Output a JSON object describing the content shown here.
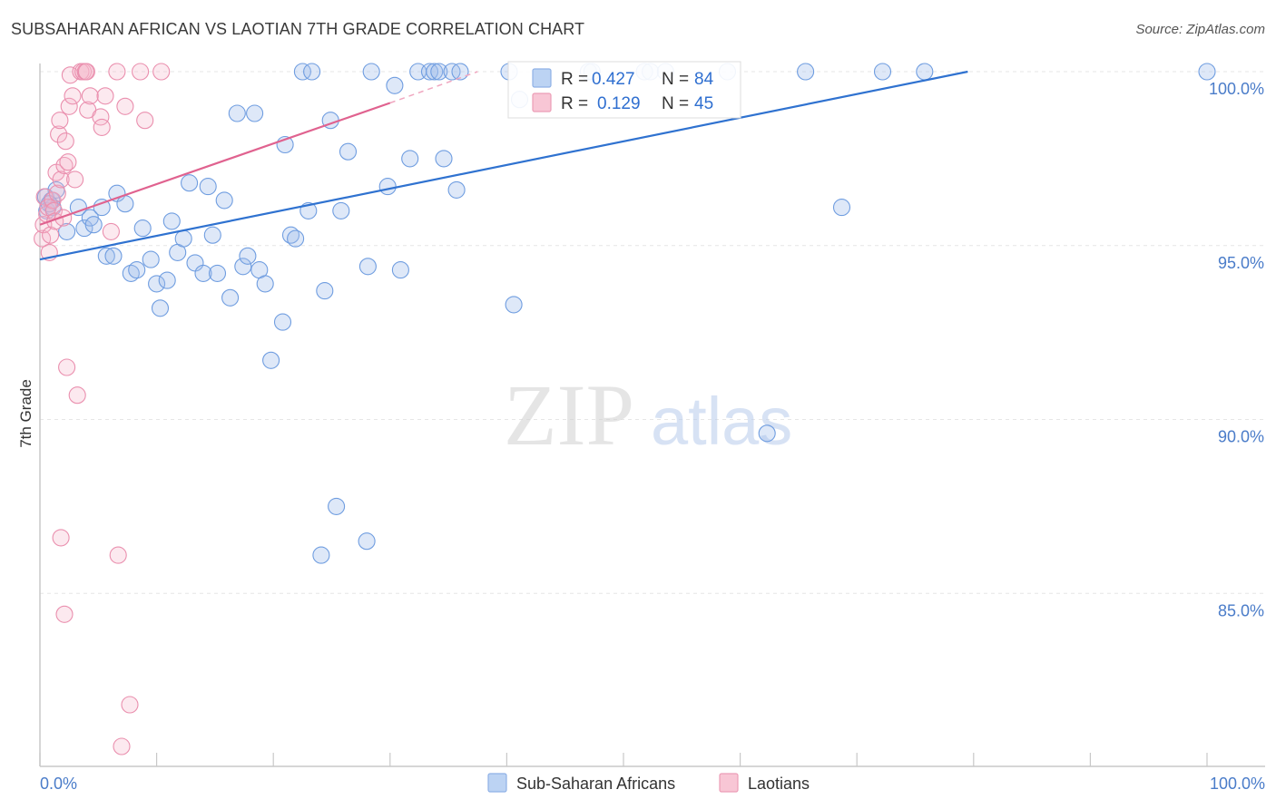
{
  "header": {
    "title": "SUBSAHARAN AFRICAN VS LAOTIAN 7TH GRADE CORRELATION CHART",
    "source": "Source: ZipAtlas.com"
  },
  "watermark": {
    "zip": "ZIP",
    "atlas": "atlas"
  },
  "legend": {
    "rows": [
      {
        "r_label": "R = ",
        "r_value": "0.427",
        "n_label": "N = ",
        "n_value": "84",
        "color": "#a9c6f0"
      },
      {
        "r_label": "R = ",
        "r_value": "0.129",
        "n_label": "N = ",
        "n_value": "45",
        "color": "#f5b6c9"
      }
    ]
  },
  "bottom_legend": {
    "items": [
      {
        "label": "Sub-Saharan Africans",
        "color": "#a9c6f0"
      },
      {
        "label": "Laotians",
        "color": "#f5b6c9"
      }
    ]
  },
  "chart_data": {
    "type": "scatter",
    "title": "SUBSAHARAN AFRICAN VS LAOTIAN 7TH GRADE CORRELATION CHART",
    "xlabel": "",
    "ylabel": "7th Grade",
    "xlim": [
      0,
      100
    ],
    "ylim": [
      80.4,
      100.3
    ],
    "x_tick_labels": [
      "0.0%",
      "100.0%"
    ],
    "y_ticks": [
      100,
      95,
      90,
      85
    ],
    "y_tick_labels": [
      "100.0%",
      "95.0%",
      "90.0%",
      "85.0%"
    ],
    "series": [
      {
        "name": "Sub-Saharan Africans",
        "color": "#6f9de0",
        "fill": "rgba(160,190,236,0.35)",
        "r": 0.427,
        "n": 84,
        "trend": {
          "x": [
            0,
            79.5
          ],
          "y": [
            94.6,
            100.0
          ]
        },
        "points": [
          [
            0.5,
            96.4
          ],
          [
            0.6,
            96.0
          ],
          [
            1.0,
            96.3
          ],
          [
            1.1,
            96.1
          ],
          [
            1.4,
            96.6
          ],
          [
            2.3,
            95.4
          ],
          [
            3.3,
            96.1
          ],
          [
            3.8,
            95.5
          ],
          [
            4.3,
            95.8
          ],
          [
            4.6,
            95.6
          ],
          [
            5.3,
            96.1
          ],
          [
            5.7,
            94.7
          ],
          [
            6.3,
            94.7
          ],
          [
            6.6,
            96.5
          ],
          [
            7.3,
            96.2
          ],
          [
            7.8,
            94.2
          ],
          [
            8.3,
            94.3
          ],
          [
            8.8,
            95.5
          ],
          [
            9.5,
            94.6
          ],
          [
            10.0,
            93.9
          ],
          [
            10.3,
            93.2
          ],
          [
            10.9,
            94.0
          ],
          [
            11.3,
            95.7
          ],
          [
            11.8,
            94.8
          ],
          [
            12.3,
            95.2
          ],
          [
            12.8,
            96.8
          ],
          [
            13.3,
            94.5
          ],
          [
            14.0,
            94.2
          ],
          [
            14.4,
            96.7
          ],
          [
            14.8,
            95.3
          ],
          [
            15.2,
            94.2
          ],
          [
            15.8,
            96.3
          ],
          [
            16.3,
            93.5
          ],
          [
            16.9,
            98.8
          ],
          [
            17.4,
            94.4
          ],
          [
            17.8,
            94.7
          ],
          [
            18.4,
            98.8
          ],
          [
            18.8,
            94.3
          ],
          [
            19.3,
            93.9
          ],
          [
            19.8,
            91.7
          ],
          [
            20.8,
            92.8
          ],
          [
            21.0,
            97.9
          ],
          [
            21.5,
            95.3
          ],
          [
            21.9,
            95.2
          ],
          [
            22.5,
            100.0
          ],
          [
            23.0,
            96.0
          ],
          [
            23.3,
            100.0
          ],
          [
            24.1,
            86.1
          ],
          [
            24.4,
            93.7
          ],
          [
            24.9,
            98.6
          ],
          [
            25.4,
            87.5
          ],
          [
            25.8,
            96.0
          ],
          [
            26.4,
            97.7
          ],
          [
            28.0,
            86.5
          ],
          [
            28.1,
            94.4
          ],
          [
            28.4,
            100.0
          ],
          [
            29.8,
            96.7
          ],
          [
            30.4,
            99.6
          ],
          [
            30.9,
            94.3
          ],
          [
            31.7,
            97.5
          ],
          [
            32.4,
            100.0
          ],
          [
            33.4,
            100.0
          ],
          [
            33.8,
            100.0
          ],
          [
            34.2,
            100.0
          ],
          [
            34.6,
            97.5
          ],
          [
            35.3,
            100.0
          ],
          [
            35.7,
            96.6
          ],
          [
            36.0,
            100.0
          ],
          [
            40.2,
            100.0
          ],
          [
            40.6,
            93.3
          ],
          [
            41.1,
            99.2
          ],
          [
            47.0,
            100.0
          ],
          [
            47.3,
            100.0
          ],
          [
            51.8,
            100.0
          ],
          [
            52.3,
            100.0
          ],
          [
            53.6,
            100.0
          ],
          [
            58.9,
            100.0
          ],
          [
            62.3,
            89.6
          ],
          [
            65.6,
            100.0
          ],
          [
            68.7,
            96.1
          ],
          [
            72.2,
            100.0
          ],
          [
            75.8,
            100.0
          ],
          [
            100.0,
            100.0
          ],
          [
            0.8,
            96.2
          ]
        ]
      },
      {
        "name": "Laotians",
        "color": "#ea8fae",
        "fill": "rgba(245,182,201,0.30)",
        "r": 0.129,
        "n": 45,
        "trend": {
          "x": [
            0,
            30.0
          ],
          "y": [
            95.6,
            99.1
          ]
        },
        "trend_dashed": {
          "x": [
            30.0,
            37.5
          ],
          "y": [
            99.1,
            100.0
          ]
        },
        "points": [
          [
            0.2,
            95.2
          ],
          [
            0.3,
            95.6
          ],
          [
            0.4,
            96.4
          ],
          [
            0.6,
            95.9
          ],
          [
            0.7,
            96.1
          ],
          [
            0.8,
            94.8
          ],
          [
            0.9,
            95.3
          ],
          [
            1.1,
            96.3
          ],
          [
            1.2,
            96.0
          ],
          [
            1.3,
            95.7
          ],
          [
            1.4,
            97.1
          ],
          [
            1.5,
            96.5
          ],
          [
            1.6,
            98.2
          ],
          [
            1.7,
            98.6
          ],
          [
            1.8,
            96.9
          ],
          [
            2.0,
            95.8
          ],
          [
            2.1,
            97.3
          ],
          [
            2.2,
            98.0
          ],
          [
            2.3,
            91.5
          ],
          [
            2.4,
            97.4
          ],
          [
            2.5,
            99.0
          ],
          [
            2.6,
            99.9
          ],
          [
            2.8,
            99.3
          ],
          [
            3.0,
            96.9
          ],
          [
            3.2,
            90.7
          ],
          [
            3.5,
            100.0
          ],
          [
            3.7,
            100.0
          ],
          [
            3.9,
            100.0
          ],
          [
            4.1,
            98.9
          ],
          [
            4.3,
            99.3
          ],
          [
            5.2,
            98.7
          ],
          [
            5.3,
            98.4
          ],
          [
            5.6,
            99.3
          ],
          [
            6.1,
            95.4
          ],
          [
            6.6,
            100.0
          ],
          [
            6.7,
            86.1
          ],
          [
            7.3,
            99.0
          ],
          [
            7.7,
            81.8
          ],
          [
            8.6,
            100.0
          ],
          [
            9.0,
            98.6
          ],
          [
            10.4,
            100.0
          ],
          [
            1.8,
            86.6
          ],
          [
            2.1,
            84.4
          ],
          [
            7.0,
            80.6
          ],
          [
            4.0,
            100.0
          ]
        ]
      }
    ]
  }
}
